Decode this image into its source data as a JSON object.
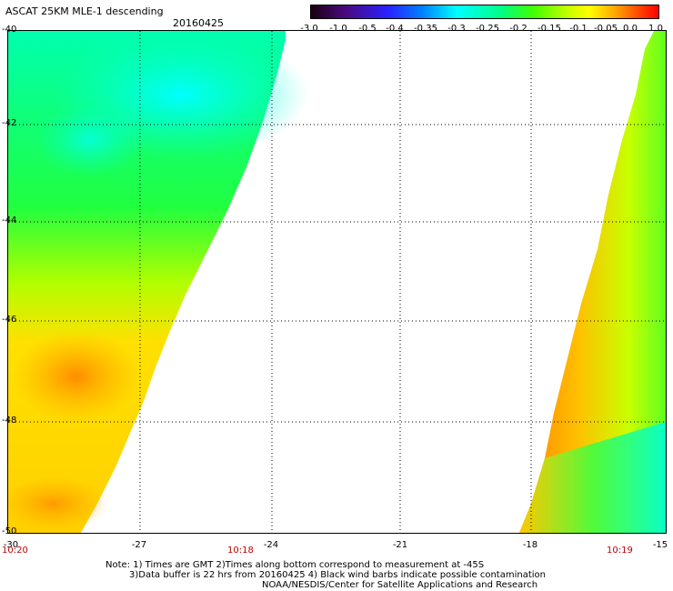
{
  "header": {
    "title": "ASCAT 25KM MLE-1 descending",
    "date": "20160425"
  },
  "colorbar": {
    "labels": [
      "-3.0",
      "-1.0",
      "-0.5",
      "-0.4",
      "-0.35",
      "-0.3",
      "-0.25",
      "-0.2",
      "-0.15",
      "-0.1",
      "-0.05",
      "0.0",
      "1.0"
    ]
  },
  "axes": {
    "lat_labels": [
      "-40",
      "-42",
      "-44",
      "-46",
      "-48",
      "-50"
    ],
    "lon_labels": [
      "-30",
      "-27",
      "-24",
      "-21",
      "-18",
      "-15"
    ]
  },
  "times": [
    "10:20",
    "10:18",
    "10:19"
  ],
  "notes": [
    "Note: 1) Times are GMT 2)Times along bottom correspond to measurement at -45S",
    "3)Data buffer is 22 hrs from 20160425 4) Black wind barbs indicate possible contamination",
    "NOAA/NESDIS/Center for Satellite Applications and Research"
  ],
  "colors": {
    "cyan": "#00ffff",
    "green": "#00ff50",
    "yellow": "#ffff00",
    "orange": "#ff8c00"
  }
}
